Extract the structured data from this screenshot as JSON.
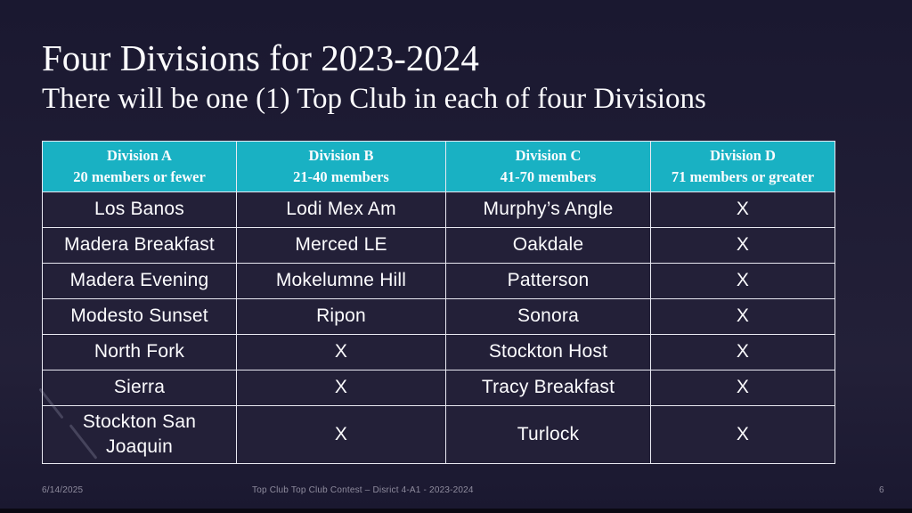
{
  "slide": {
    "title": "Four Divisions for 2023-2024",
    "subtitle": "There will be one (1) Top Club in each of four Divisions"
  },
  "table": {
    "columns": [
      {
        "label": "Division A",
        "sublabel": "20 members or fewer"
      },
      {
        "label": "Division B",
        "sublabel": "21-40 members"
      },
      {
        "label": "Division C",
        "sublabel": "41-70 members"
      },
      {
        "label": "Division D",
        "sublabel": "71 members or greater"
      }
    ],
    "rows": [
      [
        "Los Banos",
        "Lodi Mex Am",
        "Murphy’s Angle",
        "X"
      ],
      [
        "Madera Breakfast",
        "Merced LE",
        "Oakdale",
        "X"
      ],
      [
        "Madera Evening",
        "Mokelumne Hill",
        "Patterson",
        "X"
      ],
      [
        "Modesto Sunset",
        "Ripon",
        "Sonora",
        "X"
      ],
      [
        "North Fork",
        "X",
        "Stockton Host",
        "X"
      ],
      [
        "Sierra",
        "X",
        "Tracy Breakfast",
        "X"
      ],
      [
        "Stockton San Joaquin",
        "X",
        "Turlock",
        "X"
      ]
    ]
  },
  "footer": {
    "date": "6/14/2025",
    "caption": "Top Club Top Club Contest – Disrict 4-A1 - 2023-2024",
    "page_number": "6"
  },
  "colors": {
    "background": "#1a1830",
    "background2": "#232038",
    "header_teal": "#19b1c3",
    "cell_background": "#232038",
    "border": "#e9e9f2",
    "text_primary": "#fcfcfe",
    "footer_text": "#8f8c9e"
  }
}
